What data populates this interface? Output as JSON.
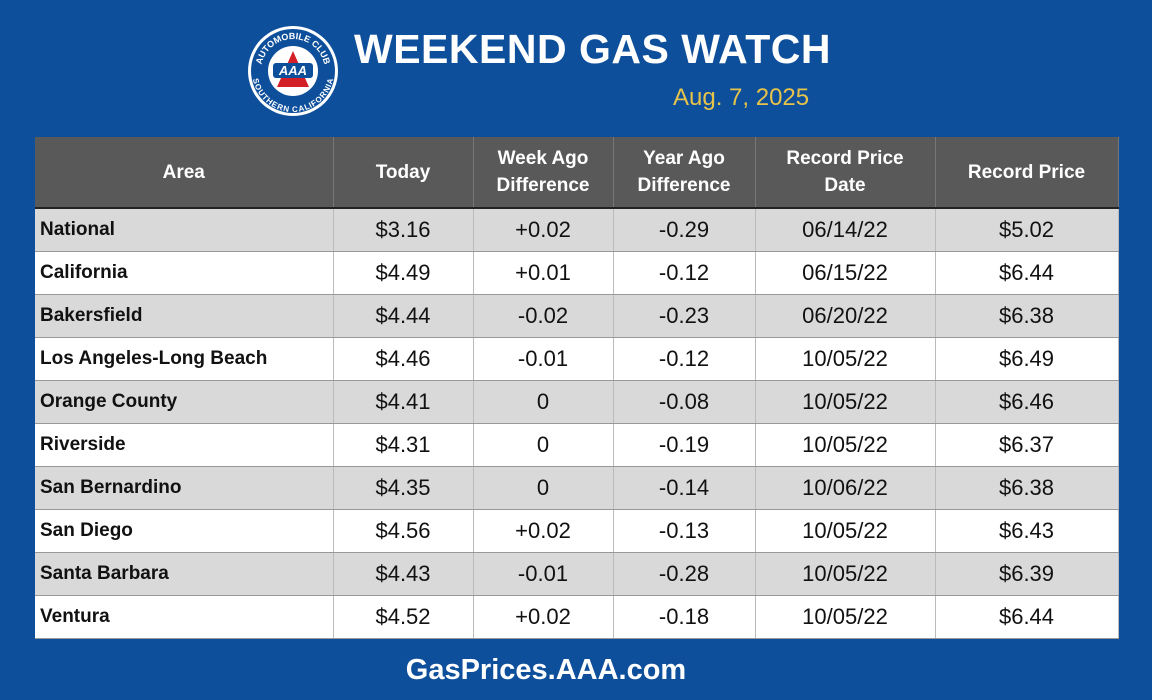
{
  "logo": {
    "top": "AUTOMOBILE CLUB",
    "center": "AAA",
    "bottom": "SOUTHERN CALIFORNIA"
  },
  "header": {
    "title": "WEEKEND GAS WATCH",
    "date": "Aug. 7, 2025"
  },
  "table": {
    "columns": [
      "Area",
      "Today",
      "Week Ago\nDifference",
      "Year Ago\nDifference",
      "Record Price\nDate",
      "Record Price"
    ],
    "rows": [
      [
        "National",
        "$3.16",
        "+0.02",
        "-0.29",
        "06/14/22",
        "$5.02"
      ],
      [
        "California",
        "$4.49",
        "+0.01",
        "-0.12",
        "06/15/22",
        "$6.44"
      ],
      [
        "Bakersfield",
        "$4.44",
        "-0.02",
        "-0.23",
        "06/20/22",
        "$6.38"
      ],
      [
        "Los Angeles-Long Beach",
        "$4.46",
        "-0.01",
        "-0.12",
        "10/05/22",
        "$6.49"
      ],
      [
        "Orange County",
        "$4.41",
        "0",
        "-0.08",
        "10/05/22",
        "$6.46"
      ],
      [
        "Riverside",
        "$4.31",
        "0",
        "-0.19",
        "10/05/22",
        "$6.37"
      ],
      [
        "San Bernardino",
        "$4.35",
        "0",
        "-0.14",
        "10/06/22",
        "$6.38"
      ],
      [
        "San Diego",
        "$4.56",
        "+0.02",
        "-0.13",
        "10/05/22",
        "$6.43"
      ],
      [
        "Santa Barbara",
        "$4.43",
        "-0.01",
        "-0.28",
        "10/05/22",
        "$6.39"
      ],
      [
        "Ventura",
        "$4.52",
        "+0.02",
        "-0.18",
        "10/05/22",
        "$6.44"
      ]
    ]
  },
  "footer": {
    "url": "GasPrices.AAA.com"
  }
}
